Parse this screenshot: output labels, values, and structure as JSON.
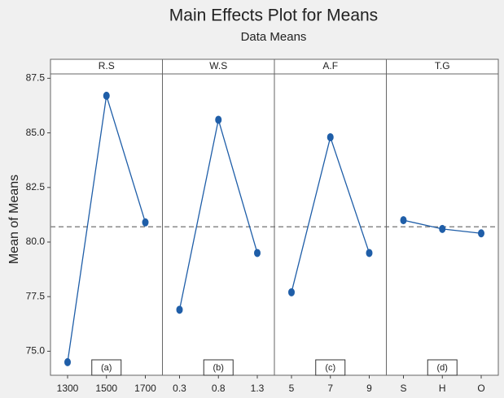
{
  "chart_data": {
    "type": "main-effects",
    "title": "Main Effects Plot for Means",
    "subtitle": "Data Means",
    "y_label": "Mean of Means",
    "ylim": [
      73.9,
      87.7
    ],
    "yticks": [
      {
        "value": 75,
        "label": "75.0"
      },
      77.5,
      {
        "value": 80,
        "label": "80.0"
      },
      82.5,
      {
        "value": 85,
        "label": "85.0"
      },
      87.5
    ],
    "reference_line": 80.7,
    "color": "#1f5ea8",
    "panels": [
      {
        "title": "R.S",
        "categories": [
          "1300",
          "1500",
          "1700"
        ],
        "values": [
          74.5,
          86.7,
          80.9
        ],
        "annotation": "(a)"
      },
      {
        "title": "W.S",
        "categories": [
          "0.3",
          "0.8",
          "1.3"
        ],
        "values": [
          76.9,
          85.6,
          79.5
        ],
        "annotation": "(b)"
      },
      {
        "title": "A.F",
        "categories": [
          "5",
          "7",
          "9"
        ],
        "values": [
          77.7,
          84.8,
          79.5
        ],
        "annotation": "(c)"
      },
      {
        "title": "T.G",
        "categories": [
          "S",
          "H",
          "O"
        ],
        "values": [
          81.0,
          80.6,
          80.4
        ],
        "annotation": "(d)"
      }
    ]
  }
}
